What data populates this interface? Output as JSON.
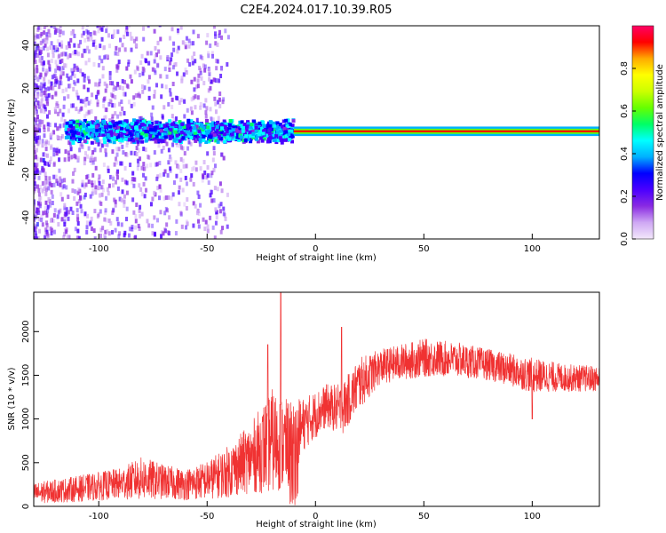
{
  "title": "C2E4.2024.017.10.39.R05",
  "chart_data": [
    {
      "type": "heatmap",
      "xlabel": "Height of straight line (km)",
      "ylabel": "Frequency (Hz)",
      "xlim": [
        -130,
        131
      ],
      "ylim": [
        -50,
        49
      ],
      "xticks": [
        "-100",
        "-50",
        "0",
        "50",
        "100"
      ],
      "yticks": [
        "40",
        "20",
        "0",
        "-20",
        "-40"
      ],
      "colorbar": {
        "label": "Normalized spectral amplitude",
        "range": [
          0,
          1
        ],
        "ticks": [
          "0.0",
          "0.2",
          "0.4",
          "0.6",
          "0.8"
        ],
        "colors": [
          "#f3e8fb",
          "#cfa8f4",
          "#8a2be2",
          "#4b00ff",
          "#0000ff",
          "#00b0ff",
          "#00ffff",
          "#00ff66",
          "#66ff00",
          "#ccff00",
          "#ffff00",
          "#ffaa00",
          "#ff0000",
          "#ff0066"
        ]
      },
      "features": [
        {
          "x_range": [
            -130,
            -40
          ],
          "freq_spread_hz": 50,
          "amplitude": 0.15
        },
        {
          "x_range": [
            -115,
            -10
          ],
          "freq_center_hz": 0,
          "freq_halfwidth_hz": 4,
          "amplitude": 0.35
        },
        {
          "x_range": [
            -10,
            131
          ],
          "freq_center_hz": 0,
          "freq_halfwidth_hz": 1,
          "amplitude": 0.9
        }
      ],
      "grid": false
    },
    {
      "type": "line",
      "xlabel": "Height of straight line (km)",
      "ylabel": "SNR (10 * v/v)",
      "xlim": [
        -130,
        131
      ],
      "ylim": [
        0,
        2450
      ],
      "xticks": [
        "-100",
        "-50",
        "0",
        "50",
        "100"
      ],
      "yticks": [
        "0",
        "500",
        "1000",
        "1500",
        "2000"
      ],
      "series_color": "#f03232",
      "envelope": [
        {
          "x": -130,
          "mean": 150,
          "spread": 120
        },
        {
          "x": -110,
          "mean": 200,
          "spread": 150
        },
        {
          "x": -90,
          "mean": 260,
          "spread": 180
        },
        {
          "x": -80,
          "mean": 320,
          "spread": 250
        },
        {
          "x": -70,
          "mean": 280,
          "spread": 200
        },
        {
          "x": -60,
          "mean": 250,
          "spread": 180
        },
        {
          "x": -50,
          "mean": 300,
          "spread": 220
        },
        {
          "x": -40,
          "mean": 400,
          "spread": 300
        },
        {
          "x": -30,
          "mean": 550,
          "spread": 400
        },
        {
          "x": -20,
          "mean": 750,
          "spread": 600
        },
        {
          "x": -12,
          "mean": 700,
          "spread": 500
        },
        {
          "x": -5,
          "mean": 950,
          "spread": 300
        },
        {
          "x": 5,
          "mean": 1150,
          "spread": 250
        },
        {
          "x": 12,
          "mean": 1100,
          "spread": 300
        },
        {
          "x": 20,
          "mean": 1400,
          "spread": 300
        },
        {
          "x": 30,
          "mean": 1600,
          "spread": 200
        },
        {
          "x": 50,
          "mean": 1700,
          "spread": 220
        },
        {
          "x": 65,
          "mean": 1680,
          "spread": 200
        },
        {
          "x": 80,
          "mean": 1620,
          "spread": 180
        },
        {
          "x": 100,
          "mean": 1500,
          "spread": 200
        },
        {
          "x": 115,
          "mean": 1470,
          "spread": 160
        },
        {
          "x": 131,
          "mean": 1460,
          "spread": 150
        }
      ],
      "spikes": [
        {
          "x": -16,
          "y": 2450
        },
        {
          "x": 12,
          "y": 2050
        },
        {
          "x": -22,
          "y": 1850
        },
        {
          "x": 100,
          "y": 1000
        }
      ],
      "grid": false
    }
  ]
}
